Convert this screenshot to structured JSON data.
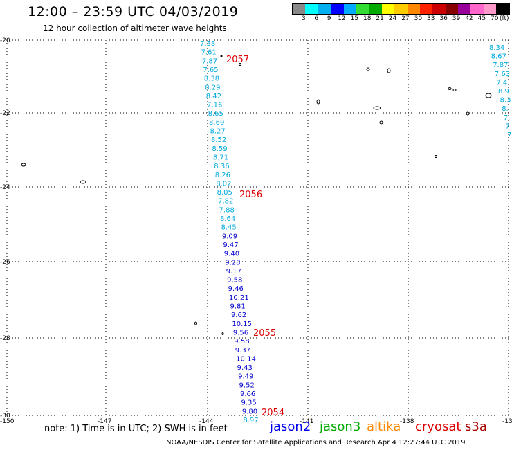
{
  "header": {
    "title": "12:00 – 23:59 UTC 04/03/2019",
    "subtitle": "12 hour collection of altimeter wave heights"
  },
  "legend": {
    "unit": "(ft)",
    "colors": [
      "#888888",
      "#00ffff",
      "#00b0f0",
      "#0000ff",
      "#00aaff",
      "#33dd33",
      "#00aa00",
      "#ffff00",
      "#ffcc00",
      "#ff8800",
      "#ff2200",
      "#cc0000",
      "#880000",
      "#990099",
      "#ff66cc",
      "#ff99cc",
      "#000000"
    ],
    "labels": [
      "3",
      "6",
      "9",
      "12",
      "15",
      "18",
      "21",
      "24",
      "27",
      "30",
      "33",
      "36",
      "39",
      "42",
      "45",
      "70"
    ]
  },
  "axes": {
    "lon_labels": [
      "-150",
      "-147",
      "-144",
      "-141",
      "-138",
      "-13"
    ],
    "lat_labels": [
      "-20",
      "-22",
      "-24",
      "-26",
      "-28",
      "-30"
    ]
  },
  "tracks": {
    "main": [
      {
        "v": "7.38",
        "c": "#00aadd"
      },
      {
        "v": "7.61",
        "c": "#00aadd"
      },
      {
        "v": "7.87",
        "c": "#00aadd"
      },
      {
        "v": "7.65",
        "c": "#00aadd"
      },
      {
        "v": "8.38",
        "c": "#00aadd"
      },
      {
        "v": "8.29",
        "c": "#00aadd"
      },
      {
        "v": "8.42",
        "c": "#00aadd"
      },
      {
        "v": "7.16",
        "c": "#00aadd"
      },
      {
        "v": "8.65",
        "c": "#00aadd"
      },
      {
        "v": "8.69",
        "c": "#00aadd"
      },
      {
        "v": "8.27",
        "c": "#00aadd"
      },
      {
        "v": "8.52",
        "c": "#00aadd"
      },
      {
        "v": "8.59",
        "c": "#00aadd"
      },
      {
        "v": "8.71",
        "c": "#00aadd"
      },
      {
        "v": "8.36",
        "c": "#00aadd"
      },
      {
        "v": "8.26",
        "c": "#00aadd"
      },
      {
        "v": "8.02",
        "c": "#00aadd"
      },
      {
        "v": "8.05",
        "c": "#00aadd"
      },
      {
        "v": "7.82",
        "c": "#00aadd"
      },
      {
        "v": "7.88",
        "c": "#00aadd"
      },
      {
        "v": "8.64",
        "c": "#00aadd"
      },
      {
        "v": "8.45",
        "c": "#00aadd"
      },
      {
        "v": "9.09",
        "c": "#0000cc"
      },
      {
        "v": "9.47",
        "c": "#0000cc"
      },
      {
        "v": "9.40",
        "c": "#0000cc"
      },
      {
        "v": "9.28",
        "c": "#0000cc"
      },
      {
        "v": "9.17",
        "c": "#0000cc"
      },
      {
        "v": "9.58",
        "c": "#0000cc"
      },
      {
        "v": "9.46",
        "c": "#0000cc"
      },
      {
        "v": "10.21",
        "c": "#0000cc"
      },
      {
        "v": "9.81",
        "c": "#0000cc"
      },
      {
        "v": "9.62",
        "c": "#0000cc"
      },
      {
        "v": "10.15",
        "c": "#0000cc"
      },
      {
        "v": "9.56",
        "c": "#0000cc"
      },
      {
        "v": "9.58",
        "c": "#0000cc"
      },
      {
        "v": "9.37",
        "c": "#0000cc"
      },
      {
        "v": "10.14",
        "c": "#0000cc"
      },
      {
        "v": "9.43",
        "c": "#0000cc"
      },
      {
        "v": "9.49",
        "c": "#0000cc"
      },
      {
        "v": "9.52",
        "c": "#0000cc"
      },
      {
        "v": "9.66",
        "c": "#0000cc"
      },
      {
        "v": "9.35",
        "c": "#0000cc"
      },
      {
        "v": "9.80",
        "c": "#0000cc"
      },
      {
        "v": "8.97",
        "c": "#00aadd"
      }
    ],
    "right": [
      {
        "v": "8.34",
        "c": "#00aadd"
      },
      {
        "v": "8.67",
        "c": "#00aadd"
      },
      {
        "v": "7.87",
        "c": "#00aadd"
      },
      {
        "v": "7.63",
        "c": "#00aadd"
      },
      {
        "v": "7.4",
        "c": "#00aadd"
      },
      {
        "v": "8.9",
        "c": "#00aadd"
      },
      {
        "v": "8.3",
        "c": "#00aadd"
      },
      {
        "v": "8.",
        "c": "#00aadd"
      },
      {
        "v": "7.",
        "c": "#00aadd"
      },
      {
        "v": "7",
        "c": "#00aadd"
      },
      {
        "v": "7",
        "c": "#00aadd"
      }
    ],
    "time_labels": [
      "2057",
      "2056",
      "2055",
      "2054"
    ]
  },
  "footer": {
    "note": "note: 1) Time is in UTC; 2) SWH is in feet",
    "satellites": [
      {
        "name": "jason2",
        "color": "#0000ee"
      },
      {
        "name": "jason3",
        "color": "#00aa00"
      },
      {
        "name": "altika",
        "color": "#ff8800"
      },
      {
        "name": "cryosat",
        "color": "#dd0000"
      },
      {
        "name": "s3a",
        "color": "#aa0000"
      }
    ],
    "credit": "NOAA/NESDIS Center for Satellite Applications and Research    Apr  4 12:27:44 UTC 2019"
  }
}
